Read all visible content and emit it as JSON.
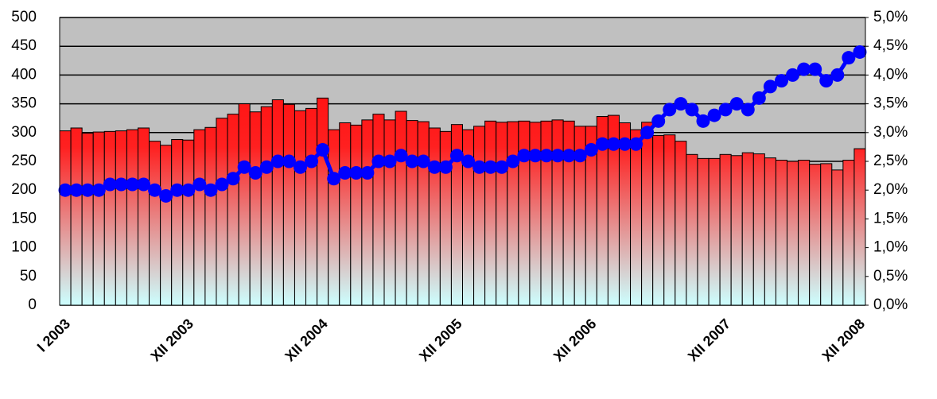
{
  "chart_data": {
    "type": "bar",
    "categories": [
      "I 2003",
      null,
      null,
      null,
      null,
      null,
      null,
      null,
      null,
      null,
      null,
      "XII 2003",
      null,
      null,
      null,
      null,
      null,
      null,
      null,
      null,
      null,
      null,
      null,
      "XII 2004",
      null,
      null,
      null,
      null,
      null,
      null,
      null,
      null,
      null,
      null,
      null,
      "XII 2005",
      null,
      null,
      null,
      null,
      null,
      null,
      null,
      null,
      null,
      null,
      null,
      "XII 2006",
      null,
      null,
      null,
      null,
      null,
      null,
      null,
      null,
      null,
      null,
      null,
      "XII 2007",
      null,
      null,
      null,
      null,
      null,
      null,
      null,
      null,
      null,
      null,
      null,
      "XII 2008"
    ],
    "series": [
      {
        "type": "bar",
        "color": "#ff0000",
        "values": [
          303,
          308,
          299,
          301,
          302,
          303,
          305,
          308,
          285,
          278,
          288,
          287,
          305,
          309,
          325,
          332,
          350,
          336,
          345,
          357,
          349,
          338,
          342,
          360,
          305,
          317,
          313,
          322,
          332,
          322,
          337,
          321,
          319,
          308,
          302,
          314,
          305,
          311,
          320,
          318,
          319,
          320,
          318,
          320,
          322,
          320,
          311,
          311,
          328,
          330,
          317,
          305,
          318,
          295,
          296,
          285,
          262,
          255,
          255,
          262,
          260,
          265,
          263,
          256,
          252,
          250,
          252,
          245,
          246,
          235,
          252,
          272
        ]
      },
      {
        "type": "line",
        "color": "#0000ff",
        "axis": "y2",
        "values": [
          2.0,
          2.0,
          2.0,
          2.0,
          2.1,
          2.1,
          2.1,
          2.1,
          2.0,
          1.9,
          2.0,
          2.0,
          2.1,
          2.0,
          2.1,
          2.2,
          2.4,
          2.3,
          2.4,
          2.5,
          2.5,
          2.4,
          2.5,
          2.7,
          2.2,
          2.3,
          2.3,
          2.3,
          2.5,
          2.5,
          2.6,
          2.5,
          2.5,
          2.4,
          2.4,
          2.6,
          2.5,
          2.4,
          2.4,
          2.4,
          2.5,
          2.6,
          2.6,
          2.6,
          2.6,
          2.6,
          2.6,
          2.7,
          2.8,
          2.8,
          2.8,
          2.8,
          3.0,
          3.2,
          3.4,
          3.5,
          3.4,
          3.2,
          3.3,
          3.4,
          3.5,
          3.4,
          3.6,
          3.8,
          3.9,
          4.0,
          4.1,
          4.1,
          3.9,
          4.0,
          4.3,
          4.4
        ]
      }
    ],
    "ylim": [
      0,
      500
    ],
    "yticks": [
      0,
      50,
      100,
      150,
      200,
      250,
      300,
      350,
      400,
      450,
      500
    ],
    "y2lim": [
      0,
      5
    ],
    "y2ticks": [
      {
        "value": 0,
        "label": "0,0%"
      },
      {
        "value": 0.5,
        "label": "0,5%"
      },
      {
        "value": 1,
        "label": "1,0%"
      },
      {
        "value": 1.5,
        "label": "1,5%"
      },
      {
        "value": 2,
        "label": "2,0%"
      },
      {
        "value": 2.5,
        "label": "2,5%"
      },
      {
        "value": 3,
        "label": "3,0%"
      },
      {
        "value": 3.5,
        "label": "3,5%"
      },
      {
        "value": 4,
        "label": "4,0%"
      },
      {
        "value": 4.5,
        "label": "4,5%"
      },
      {
        "value": 5,
        "label": "5,0%"
      }
    ],
    "grid": true
  }
}
